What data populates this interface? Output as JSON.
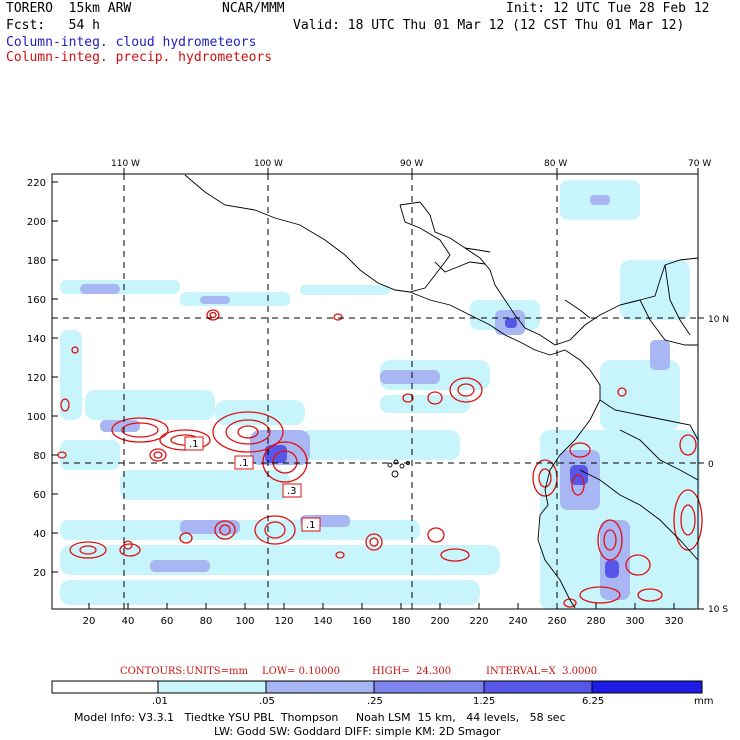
{
  "header": {
    "model": "TORERO  15km ARW",
    "center": "NCAR/MMM",
    "init": "Init: 12 UTC Tue 28 Feb 12",
    "fcst": "Fcst:   54 h",
    "valid": "Valid: 18 UTC Thu 01 Mar 12 (12 CST Thu 01 Mar 12)",
    "field1": "Column-integ. cloud hydrometeors",
    "field2": "Column-integ. precip. hydrometeors"
  },
  "axes": {
    "top_lon_labels": [
      "110 W",
      "100 W",
      "90 W",
      "80 W",
      "70 W"
    ],
    "right_lat_labels": [
      "10 N",
      "0",
      "10 S"
    ],
    "left_y_ticks": [
      "220",
      "200",
      "180",
      "160",
      "140",
      "120",
      "100",
      "80",
      "60",
      "40",
      "20"
    ],
    "bottom_x_ticks": [
      "20",
      "40",
      "60",
      "80",
      "100",
      "120",
      "140",
      "160",
      "180",
      "200",
      "220",
      "240",
      "260",
      "280",
      "300",
      "320"
    ]
  },
  "contour_labels": [
    ".1",
    ".1",
    ".3",
    ".1"
  ],
  "contour_info": {
    "contours": "CONTOURS:",
    "units": "UNITS=mm",
    "low": "LOW= 0.10000",
    "high": "HIGH=  24.300",
    "interval": "INTERVAL=X  3.0000"
  },
  "colorbar": {
    "ticks": [
      ".01",
      ".05",
      ".25",
      "1.25",
      "6.25"
    ],
    "unit": "mm",
    "colors": [
      "#ffffff",
      "#c8f4fb",
      "#a8b6f4",
      "#7e84ee",
      "#5656e8",
      "#1c1ce6"
    ]
  },
  "footer": {
    "line1": "Model Info: V3.3.1   Tiedtke YSU PBL  Thompson     Noah LSM  15 km,   44 levels,   58 sec",
    "line2": "LW: Godd SW: Goddard DIFF: simple KM: 2D Smagor"
  }
}
